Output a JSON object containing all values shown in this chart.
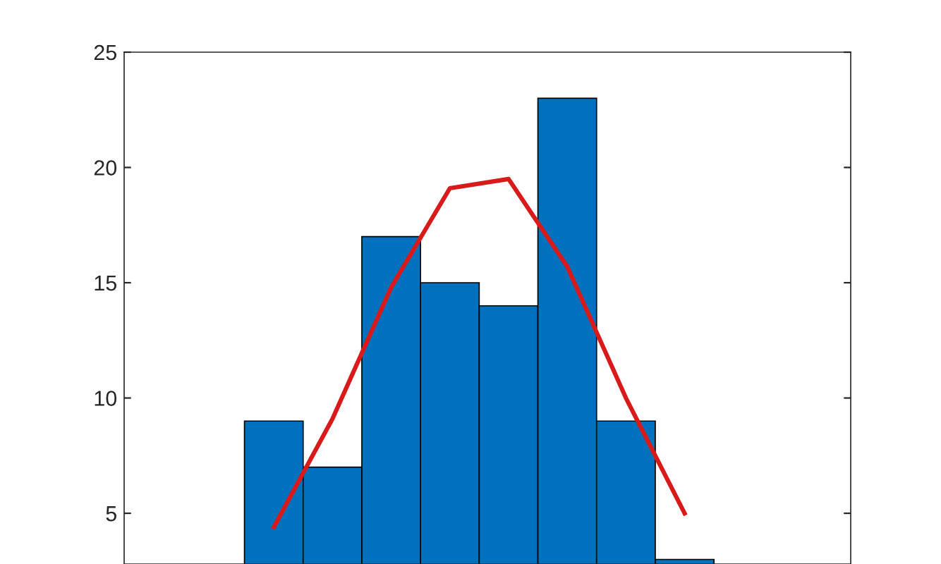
{
  "chart_data": {
    "type": "bar",
    "categories": [
      null,
      null,
      null,
      null,
      null,
      null,
      null,
      null
    ],
    "values": [
      9,
      7,
      17,
      15,
      14,
      23,
      9,
      3
    ],
    "color": "#0072bd",
    "series": [
      {
        "type": "line",
        "color": "#d91a1a",
        "values": [
          4.4,
          9.1,
          14.8,
          19.1,
          19.5,
          15.7,
          10.0,
          5.0
        ]
      }
    ],
    "ylim": [
      2.8,
      25
    ],
    "yticks": [
      5,
      10,
      15,
      20,
      25
    ],
    "grid": false
  }
}
